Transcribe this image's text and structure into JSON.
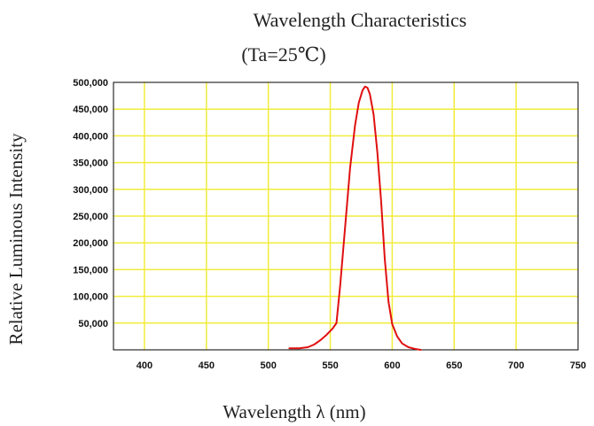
{
  "chart_data": {
    "type": "line",
    "title": "Wavelength Characteristics",
    "subtitle": "(Ta=25℃)",
    "xlabel": "Wavelength λ (nm)",
    "ylabel": "Relative Luminous Intensity",
    "xlim": [
      375,
      750
    ],
    "ylim": [
      0,
      500000
    ],
    "x_ticks": [
      400,
      450,
      500,
      550,
      600,
      650,
      700,
      750
    ],
    "x_tick_labels": [
      "400",
      "450",
      "500",
      "550",
      "600",
      "650",
      "700",
      "750"
    ],
    "y_ticks": [
      50000,
      100000,
      150000,
      200000,
      250000,
      300000,
      350000,
      400000,
      450000,
      500000
    ],
    "y_tick_labels": [
      "50,000",
      "100,000",
      "150,000",
      "200,000",
      "250,000",
      "300,000",
      "350,000",
      "400,000",
      "450,000",
      "500,000"
    ],
    "grid": true,
    "grid_color": "#f2ec3c",
    "series": [
      {
        "color": "#e01010",
        "x": [
          517,
          525,
          532,
          537,
          542,
          547,
          552,
          555,
          558,
          562,
          566,
          570,
          573,
          576,
          578,
          580,
          582,
          585,
          588,
          591,
          594,
          597,
          600,
          604,
          608,
          613,
          618,
          623
        ],
        "y": [
          3000,
          3000,
          5000,
          10000,
          18000,
          28000,
          40000,
          50000,
          120000,
          230000,
          340000,
          420000,
          462000,
          485000,
          492000,
          490000,
          478000,
          440000,
          370000,
          280000,
          170000,
          90000,
          48000,
          25000,
          12000,
          5000,
          2000,
          0
        ]
      }
    ]
  }
}
